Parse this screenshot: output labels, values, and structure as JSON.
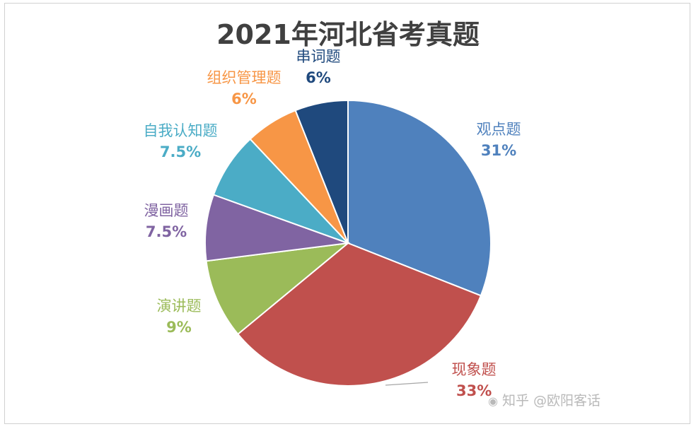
{
  "chart_data": {
    "type": "pie",
    "title": "2021年河北省考真题",
    "slices": [
      {
        "name": "观点题",
        "label": "31%",
        "value": 31,
        "color": "#4f81bd"
      },
      {
        "name": "现象题",
        "label": "33%",
        "value": 33,
        "color": "#c0504d"
      },
      {
        "name": "演讲题",
        "label": "9%",
        "value": 9,
        "color": "#9bbb59"
      },
      {
        "name": "漫画题",
        "label": "7.5%",
        "value": 7.5,
        "color": "#8064a2"
      },
      {
        "name": "自我认知题",
        "label": "7.5%",
        "value": 7.5,
        "color": "#4bacc6"
      },
      {
        "name": "组织管理题",
        "label": "6%",
        "value": 6,
        "color": "#f79646"
      },
      {
        "name": "串词题",
        "label": "6%",
        "value": 6,
        "color": "#1f497d"
      }
    ]
  },
  "watermark": {
    "icon": "camera-icon",
    "text": "知乎 @欧阳客话"
  }
}
